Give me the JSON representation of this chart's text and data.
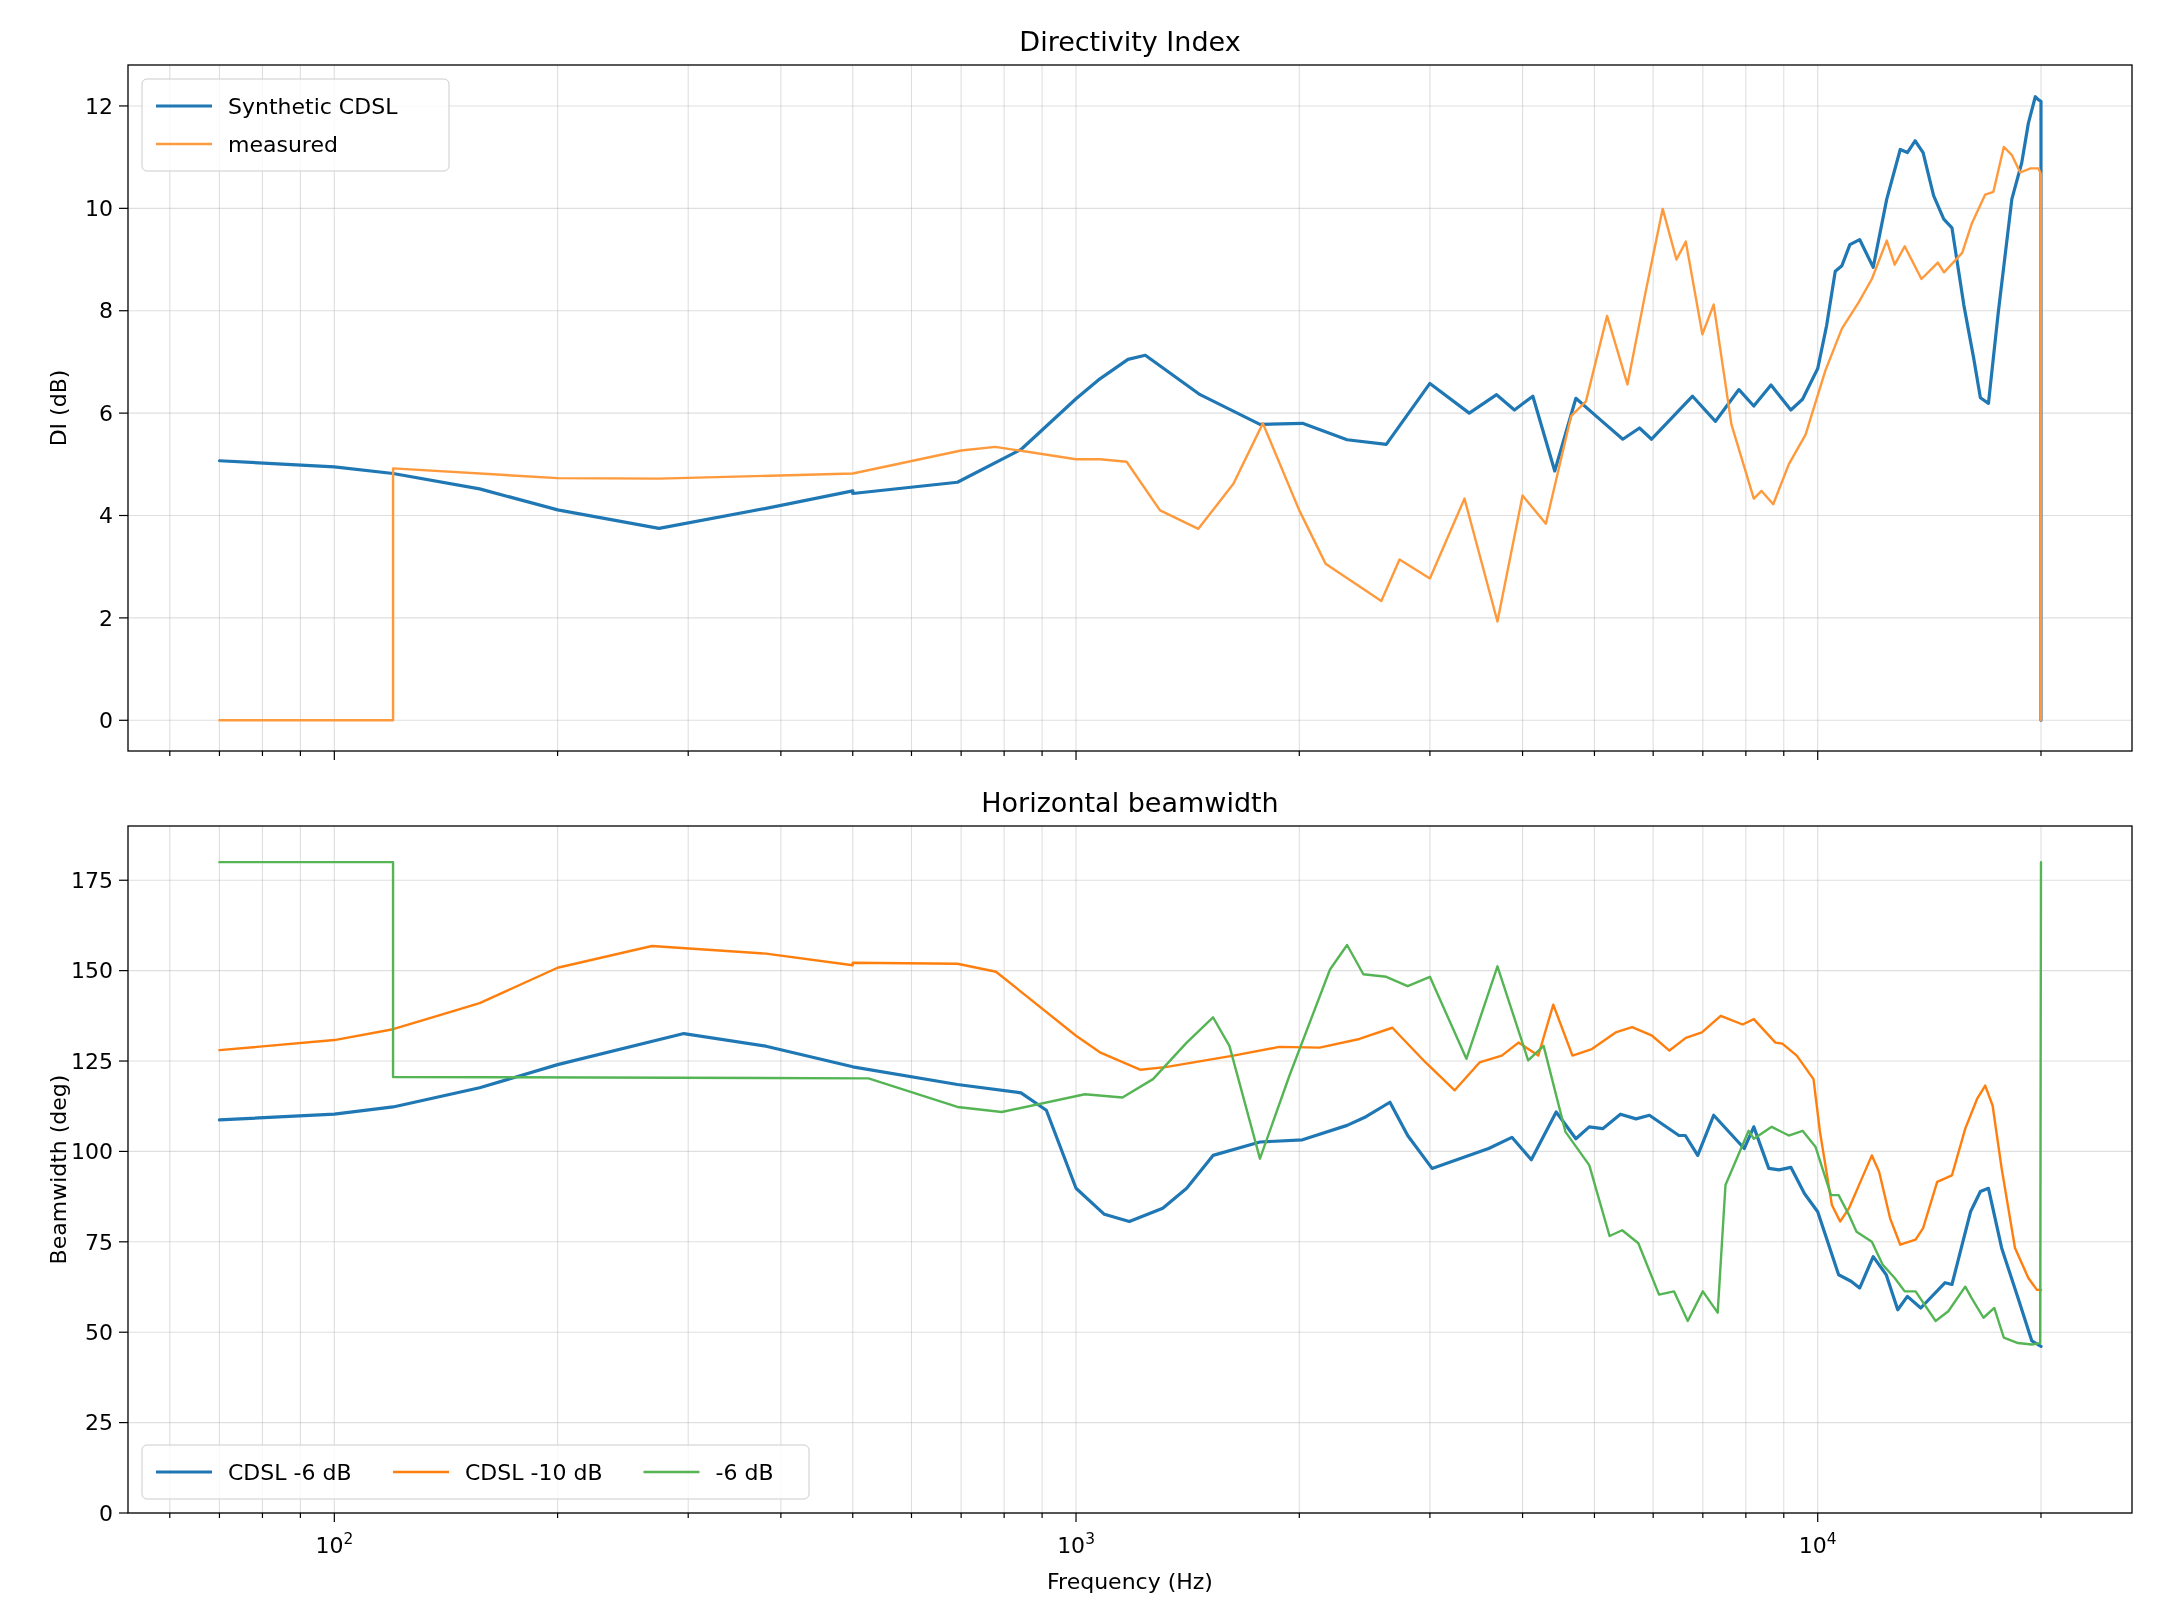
{
  "chart_data": [
    {
      "type": "line",
      "title": "Directivity Index",
      "ylabel": "DI (dB)",
      "xlim": [
        52.7,
        26530
      ],
      "ylim": [
        -0.6,
        12.8
      ],
      "log": "x",
      "grid": true,
      "legend": "top left",
      "tick_labels": "y",
      "xticks": [
        {
          "value": 60,
          "label": null
        },
        {
          "value": 70,
          "label": null
        },
        {
          "value": 80,
          "label": null
        },
        {
          "value": 90,
          "label": null
        },
        {
          "value": 100,
          "label": null
        },
        {
          "value": 200,
          "label": null
        },
        {
          "value": 300,
          "label": null
        },
        {
          "value": 400,
          "label": null
        },
        {
          "value": 500,
          "label": null
        },
        {
          "value": 600,
          "label": null
        },
        {
          "value": 700,
          "label": null
        },
        {
          "value": 800,
          "label": null
        },
        {
          "value": 900,
          "label": null
        },
        {
          "value": 1000,
          "label": null
        },
        {
          "value": 2000,
          "label": null
        },
        {
          "value": 3000,
          "label": null
        },
        {
          "value": 4000,
          "label": null
        },
        {
          "value": 5000,
          "label": null
        },
        {
          "value": 6000,
          "label": null
        },
        {
          "value": 7000,
          "label": null
        },
        {
          "value": 8000,
          "label": null
        },
        {
          "value": 9000,
          "label": null
        },
        {
          "value": 10000,
          "label": null
        },
        {
          "value": 20000,
          "label": null
        }
      ],
      "yticks": [
        0,
        2,
        4,
        6,
        8,
        10,
        12
      ],
      "series": [
        {
          "name": "Synthetic CDSL",
          "color": "#1f77b4",
          "x": [
            70,
            100,
            120,
            157,
            200,
            274,
            382,
            500,
            500,
            692,
            843,
            1000,
            1077,
            1175,
            1240,
            1470,
            1770,
            2020,
            2320,
            2620,
            3000,
            3390,
            3690,
            3900,
            4130,
            4420,
            4720,
            5000,
            5460,
            5750,
            5970,
            6780,
            7280,
            7830,
            8200,
            8650,
            9200,
            9540,
            10000,
            10280,
            10560,
            10780,
            11050,
            11390,
            11880,
            12390,
            12920,
            13210,
            13530,
            13870,
            14330,
            14790,
            15170,
            15740,
            16230,
            16570,
            16990,
            17520,
            18270,
            18840,
            19230,
            19650,
            19850,
            20000,
            20000
          ],
          "values": [
            5.07,
            4.95,
            4.82,
            4.52,
            4.11,
            3.75,
            4.14,
            4.48,
            4.43,
            4.65,
            5.29,
            6.28,
            6.67,
            7.05,
            7.13,
            6.36,
            5.78,
            5.8,
            5.48,
            5.39,
            6.58,
            6.0,
            6.36,
            6.06,
            6.33,
            4.87,
            6.29,
            5.97,
            5.49,
            5.71,
            5.49,
            6.33,
            5.84,
            6.46,
            6.14,
            6.55,
            6.06,
            6.27,
            6.87,
            7.71,
            8.77,
            8.88,
            9.29,
            9.39,
            8.85,
            10.18,
            11.15,
            11.09,
            11.32,
            11.09,
            10.25,
            9.79,
            9.62,
            8.11,
            7.07,
            6.3,
            6.19,
            7.98,
            10.18,
            10.89,
            11.66,
            12.18,
            12.12,
            12.09,
            0
          ]
        },
        {
          "name": "measured",
          "color": "#ff9a3c",
          "x": [
            70,
            120,
            120,
            200,
            274,
            500,
            700,
            778,
            1000,
            1077,
            1170,
            1298,
            1462,
            1630,
            1786,
            2000,
            2170,
            2580,
            2730,
            3000,
            3340,
            3700,
            4000,
            4300,
            4650,
            4870,
            5200,
            5540,
            5850,
            6180,
            6450,
            6640,
            6990,
            7240,
            7650,
            8200,
            8400,
            8710,
            9140,
            9630,
            10240,
            10780,
            11350,
            11830,
            12390,
            12700,
            13100,
            13800,
            14520,
            14800,
            15660,
            16140,
            16820,
            17250,
            17820,
            18270,
            18750,
            19360,
            19850,
            20000,
            20000
          ],
          "values": [
            0,
            0,
            4.92,
            4.73,
            4.72,
            4.82,
            5.27,
            5.34,
            5.1,
            5.1,
            5.05,
            4.1,
            3.74,
            4.62,
            5.8,
            4.1,
            3.06,
            2.33,
            3.14,
            2.77,
            4.33,
            1.93,
            4.39,
            3.84,
            5.94,
            6.23,
            7.9,
            6.56,
            8.31,
            9.99,
            9.0,
            9.35,
            7.54,
            8.12,
            5.78,
            4.33,
            4.48,
            4.22,
            5.0,
            5.58,
            6.83,
            7.65,
            8.16,
            8.62,
            9.37,
            8.9,
            9.26,
            8.62,
            8.94,
            8.75,
            9.13,
            9.71,
            10.27,
            10.32,
            11.2,
            11.04,
            10.7,
            10.78,
            10.78,
            10.66,
            0
          ]
        }
      ]
    },
    {
      "type": "line",
      "title": "Horizontal beamwidth",
      "xlabel": "Frequency (Hz)",
      "ylabel": "Beamwidth (deg)",
      "xlim": [
        52.7,
        26530
      ],
      "ylim": [
        0,
        190
      ],
      "log": "x",
      "grid": true,
      "legend": "bottom left",
      "xticks": [
        {
          "value": 60,
          "label": null
        },
        {
          "value": 70,
          "label": null
        },
        {
          "value": 80,
          "label": null
        },
        {
          "value": 90,
          "label": null
        },
        {
          "value": 100,
          "label": "10$^{2}$"
        },
        {
          "value": 200,
          "label": null
        },
        {
          "value": 300,
          "label": null
        },
        {
          "value": 400,
          "label": null
        },
        {
          "value": 500,
          "label": null
        },
        {
          "value": 600,
          "label": null
        },
        {
          "value": 700,
          "label": null
        },
        {
          "value": 800,
          "label": null
        },
        {
          "value": 900,
          "label": null
        },
        {
          "value": 1000,
          "label": "10$^{3}$"
        },
        {
          "value": 2000,
          "label": null
        },
        {
          "value": 3000,
          "label": null
        },
        {
          "value": 4000,
          "label": null
        },
        {
          "value": 5000,
          "label": null
        },
        {
          "value": 6000,
          "label": null
        },
        {
          "value": 7000,
          "label": null
        },
        {
          "value": 8000,
          "label": null
        },
        {
          "value": 9000,
          "label": null
        },
        {
          "value": 10000,
          "label": "10$^{4}$"
        },
        {
          "value": 20000,
          "label": null
        }
      ],
      "yticks": [
        0,
        25,
        50,
        75,
        100,
        125,
        150,
        175
      ],
      "series": [
        {
          "name": "CDSL -6 dB",
          "color": "#1f77b4",
          "x": [
            70,
            100,
            120,
            157,
            200,
            296,
            382,
            500,
            692,
            843,
            912,
            1000,
            1092,
            1180,
            1309,
            1410,
            1530,
            1770,
            2020,
            2320,
            2460,
            2650,
            2800,
            3020,
            3290,
            3600,
            3870,
            4110,
            4440,
            4720,
            4920,
            5130,
            5420,
            5690,
            5930,
            6500,
            6630,
            6890,
            7240,
            7960,
            8200,
            8590,
            8870,
            9200,
            9600,
            10000,
            10670,
            11090,
            11390,
            11880,
            12370,
            12820,
            13210,
            13770,
            14850,
            15170,
            16070,
            16570,
            16990,
            17700,
            18620,
            19440,
            20000
          ],
          "values": [
            108.7,
            110.3,
            112.3,
            117.6,
            124,
            132.6,
            129.1,
            123.4,
            118.5,
            116.2,
            111.4,
            89.8,
            82.6,
            80.6,
            84.3,
            89.8,
            98.9,
            102.6,
            103.2,
            107.2,
            109.6,
            113.6,
            104.4,
            95.3,
            98,
            100.8,
            103.9,
            97.7,
            110.9,
            103.5,
            106.8,
            106.3,
            110.3,
            109,
            110,
            104.4,
            104.4,
            98.9,
            110,
            100.8,
            106.8,
            95.3,
            94.9,
            95.6,
            88.3,
            83.3,
            65.9,
            64.1,
            62.2,
            70.9,
            65.9,
            56.2,
            59.9,
            56.7,
            63.7,
            63.2,
            83.3,
            88.9,
            89.8,
            73.3,
            59.5,
            47.6,
            46.1
          ]
        },
        {
          "name": "CDSL -10 dB",
          "color": "#ff7f0e",
          "x": [
            70,
            100,
            120,
            157,
            200,
            268,
            382,
            500,
            500,
            692,
            780,
            1000,
            1077,
            1220,
            1320,
            1630,
            1880,
            2130,
            2410,
            2670,
            2960,
            3240,
            3500,
            3750,
            3950,
            4200,
            4400,
            4670,
            4960,
            5340,
            5620,
            5980,
            6310,
            6640,
            6980,
            7400,
            7920,
            8200,
            8770,
            8960,
            9370,
            9870,
            10070,
            10450,
            10720,
            11020,
            11390,
            11830,
            12100,
            12520,
            12920,
            13550,
            13870,
            14490,
            15170,
            15810,
            16400,
            16820,
            17210,
            17700,
            18450,
            19230,
            19750,
            20000
          ],
          "values": [
            128,
            130.8,
            133.8,
            141,
            150.8,
            156.8,
            154.7,
            151.5,
            152.2,
            151.9,
            149.7,
            132,
            127.4,
            122.6,
            123.3,
            126.5,
            128.9,
            128.7,
            131.1,
            134.2,
            124.6,
            116.9,
            124.6,
            126.5,
            130.1,
            126.5,
            140.6,
            126.5,
            128.3,
            132.9,
            134.4,
            132,
            127.9,
            131.4,
            132.9,
            137.5,
            135.1,
            136.6,
            130.1,
            129.8,
            126.5,
            120,
            105.4,
            85.2,
            80.6,
            84.3,
            91.1,
            98.9,
            94.4,
            81.5,
            74.2,
            75.6,
            78.8,
            91.6,
            93.4,
            106.3,
            114.5,
            118.2,
            112.7,
            95.3,
            73.3,
            65,
            61.7,
            61.7
          ]
        },
        {
          "name": "-6 dB",
          "color": "#55b555",
          "x": [
            70,
            120,
            120,
            525,
            692,
            794,
            1028,
            1155,
            1270,
            1410,
            1530,
            1610,
            1770,
            1940,
            2200,
            2320,
            2440,
            2620,
            2800,
            3000,
            3360,
            3700,
            4070,
            4270,
            4570,
            4920,
            5240,
            5450,
            5730,
            6110,
            6400,
            6680,
            7000,
            7330,
            7510,
            8070,
            8200,
            8670,
            9140,
            9540,
            9930,
            10420,
            10670,
            11020,
            11280,
            11830,
            12230,
            12700,
            13100,
            13550,
            14420,
            15000,
            15810,
            16120,
            16730,
            17300,
            17820,
            18620,
            19440,
            19950,
            20000
          ],
          "values": [
            180,
            180,
            120.6,
            120.2,
            112.3,
            110.9,
            115.8,
            114.9,
            120,
            130.1,
            137.1,
            129.2,
            98,
            121,
            150.3,
            157.1,
            149,
            148.3,
            145.7,
            148.3,
            125.6,
            151.2,
            125.2,
            129.2,
            105.4,
            96.2,
            76.6,
            78.2,
            74.6,
            60.4,
            61.3,
            53.1,
            61.3,
            55.4,
            90.7,
            105.7,
            103.5,
            106.8,
            104.4,
            105.7,
            101.3,
            87.9,
            87.9,
            82.4,
            77.8,
            75,
            68.7,
            65,
            61.3,
            61.3,
            53.1,
            55.8,
            62.6,
            59.5,
            54,
            56.7,
            48.5,
            47,
            46.6,
            47,
            180
          ]
        }
      ]
    }
  ]
}
